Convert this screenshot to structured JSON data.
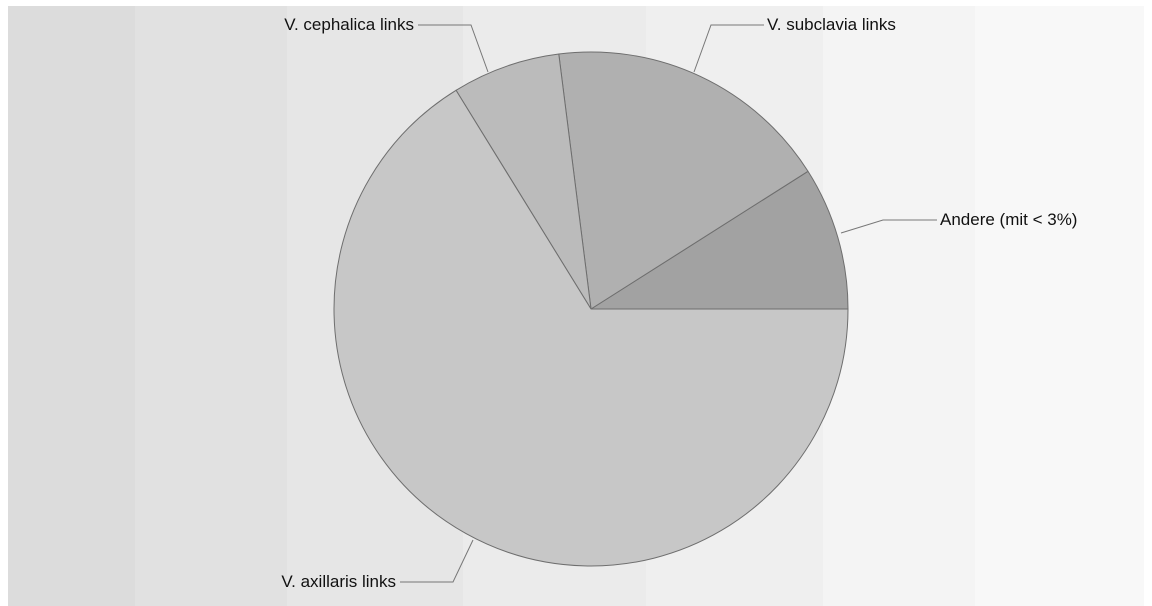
{
  "chart_data": {
    "type": "pie",
    "title": "",
    "slices": [
      {
        "label": "Andere (mit < 3%)",
        "value": 9.0,
        "color": "#a2a2a2"
      },
      {
        "label": "V. subclavia links",
        "value": 18.0,
        "color": "#b0b0b0"
      },
      {
        "label": "V. cephalica links",
        "value": 6.8,
        "color": "#bbbbbb"
      },
      {
        "label": "V. axillaris links",
        "value": 66.2,
        "color": "#c7c7c7"
      }
    ],
    "start_angle": "3 o'clock",
    "direction": "counterclockwise",
    "background_bands": [
      "#dcdcdc",
      "#e1e1e1",
      "#e6e6e6",
      "#ebebeb",
      "#efefef",
      "#f4f4f4",
      "#f8f8f8"
    ]
  }
}
